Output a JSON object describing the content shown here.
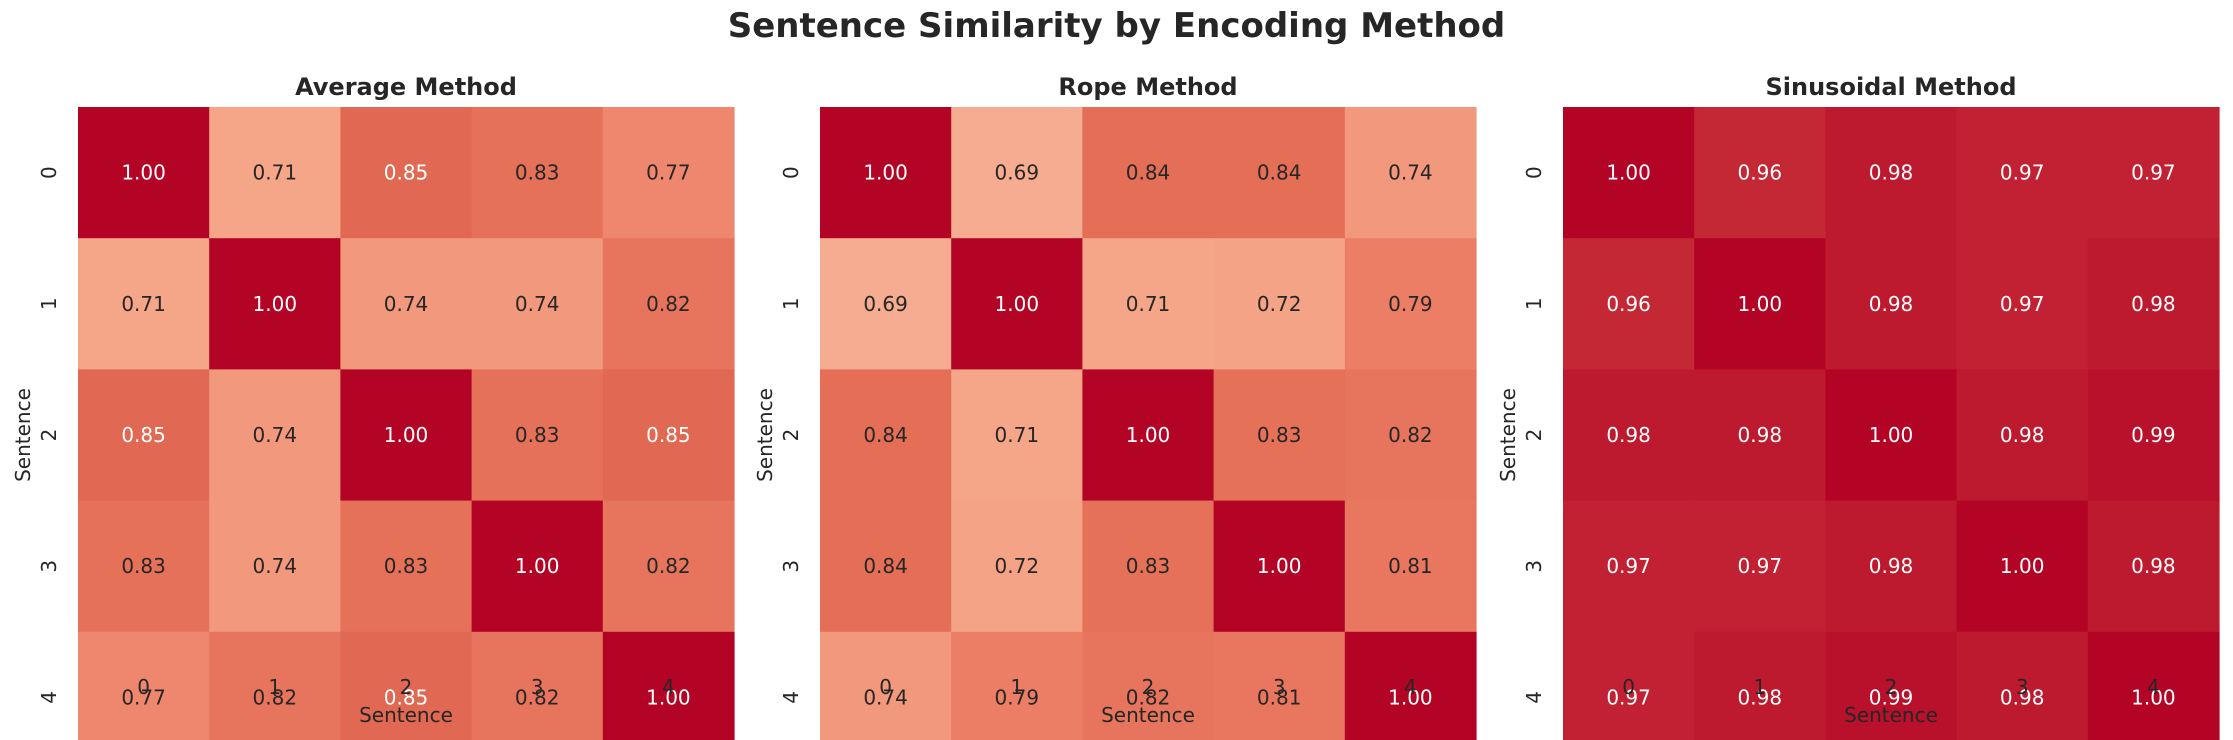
{
  "figure": {
    "title": "Sentence Similarity by Encoding Method"
  },
  "chart_data": [
    {
      "type": "heatmap",
      "title": "Average Method",
      "xlabel": "Sentence",
      "ylabel": "Sentence",
      "x_ticks": [
        "0",
        "1",
        "2",
        "3",
        "4"
      ],
      "y_ticks": [
        "0",
        "1",
        "2",
        "3",
        "4"
      ],
      "values": [
        [
          1.0,
          0.71,
          0.85,
          0.83,
          0.77
        ],
        [
          0.71,
          1.0,
          0.74,
          0.74,
          0.82
        ],
        [
          0.85,
          0.74,
          1.0,
          0.83,
          0.85
        ],
        [
          0.83,
          0.74,
          0.83,
          1.0,
          0.82
        ],
        [
          0.77,
          0.82,
          0.85,
          0.82,
          1.0
        ]
      ],
      "colormap": "coolwarm",
      "colorbar": false,
      "annotation_format": "0.00"
    },
    {
      "type": "heatmap",
      "title": "Rope Method",
      "xlabel": "Sentence",
      "ylabel": "Sentence",
      "x_ticks": [
        "0",
        "1",
        "2",
        "3",
        "4"
      ],
      "y_ticks": [
        "0",
        "1",
        "2",
        "3",
        "4"
      ],
      "values": [
        [
          1.0,
          0.69,
          0.84,
          0.84,
          0.74
        ],
        [
          0.69,
          1.0,
          0.71,
          0.72,
          0.79
        ],
        [
          0.84,
          0.71,
          1.0,
          0.83,
          0.82
        ],
        [
          0.84,
          0.72,
          0.83,
          1.0,
          0.81
        ],
        [
          0.74,
          0.79,
          0.82,
          0.81,
          1.0
        ]
      ],
      "colormap": "coolwarm",
      "colorbar": false,
      "annotation_format": "0.00"
    },
    {
      "type": "heatmap",
      "title": "Sinusoidal Method",
      "xlabel": "Sentence",
      "ylabel": "Sentence",
      "x_ticks": [
        "0",
        "1",
        "2",
        "3",
        "4"
      ],
      "y_ticks": [
        "0",
        "1",
        "2",
        "3",
        "4"
      ],
      "values": [
        [
          1.0,
          0.96,
          0.98,
          0.97,
          0.97
        ],
        [
          0.96,
          1.0,
          0.98,
          0.97,
          0.98
        ],
        [
          0.98,
          0.98,
          1.0,
          0.98,
          0.99
        ],
        [
          0.97,
          0.97,
          0.98,
          1.0,
          0.98
        ],
        [
          0.97,
          0.98,
          0.99,
          0.98,
          1.0
        ]
      ],
      "colormap": "coolwarm",
      "colorbar": false,
      "annotation_format": "0.00"
    }
  ]
}
